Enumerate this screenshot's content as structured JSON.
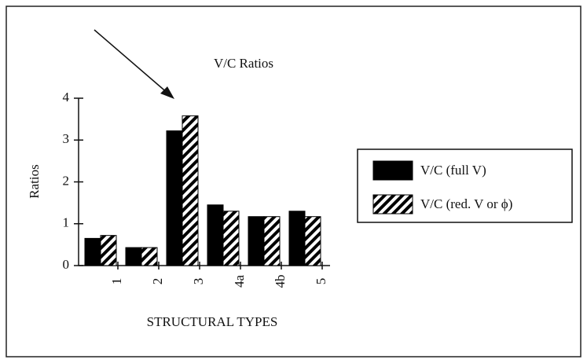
{
  "chart_data": {
    "type": "bar",
    "title": "V/C Ratios",
    "x_label": "STRUCTURAL TYPES",
    "y_label": "Ratios",
    "categories": [
      "1",
      "2",
      "3",
      "4a",
      "4b",
      "5"
    ],
    "series": [
      {
        "name": "V/C (full V)",
        "color": "#000000",
        "pattern": "solid",
        "values": [
          0.65,
          0.43,
          3.22,
          1.45,
          1.17,
          1.3
        ]
      },
      {
        "name": "V/C (red. V or ϕ)",
        "color": "#000000",
        "pattern": "hatch",
        "values": [
          0.72,
          0.43,
          3.58,
          1.3,
          1.17,
          1.17
        ]
      }
    ],
    "ylim": [
      0,
      4
    ],
    "yticks": [
      0,
      1,
      2,
      3,
      4
    ],
    "grid": false
  }
}
